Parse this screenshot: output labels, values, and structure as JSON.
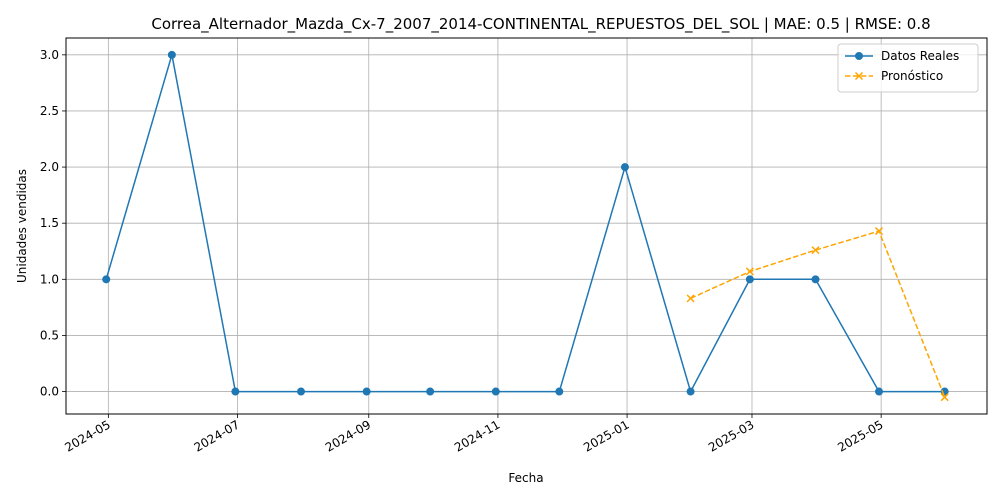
{
  "chart_data": {
    "type": "line",
    "title": "Correa_Alternador_Mazda_Cx-7_2007_2014-CONTINENTAL_REPUESTOS_DEL_SOL | MAE: 0.5 | RMSE: 0.8",
    "xlabel": "Fecha",
    "ylabel": "Unidades vendidas",
    "xlim": [
      "2024-04-11",
      "2025-06-20"
    ],
    "ylim": [
      -0.2,
      3.15
    ],
    "x_ticks": [
      "2024-05",
      "2024-07",
      "2024-09",
      "2024-11",
      "2025-01",
      "2025-03",
      "2025-05"
    ],
    "y_ticks": [
      0.0,
      0.5,
      1.0,
      1.5,
      2.0,
      2.5,
      3.0
    ],
    "y_tick_labels": [
      "0.0",
      "0.5",
      "1.0",
      "1.5",
      "2.0",
      "2.5",
      "3.0"
    ],
    "grid": true,
    "legend_position": "top-right",
    "series": [
      {
        "name": "Datos Reales",
        "color": "#1f77b4",
        "style": "solid",
        "marker": "circle",
        "x": [
          "2024-04-30",
          "2024-05-31",
          "2024-06-30",
          "2024-07-31",
          "2024-08-31",
          "2024-09-30",
          "2024-10-31",
          "2024-11-30",
          "2024-12-31",
          "2025-01-31",
          "2025-02-28",
          "2025-03-31",
          "2025-04-30",
          "2025-05-31"
        ],
        "values": [
          1,
          3,
          0,
          0,
          0,
          0,
          0,
          0,
          2,
          0,
          1,
          1,
          0,
          0
        ]
      },
      {
        "name": "Pronóstico",
        "color": "#ffa500",
        "style": "dashed",
        "marker": "x",
        "x": [
          "2025-01-31",
          "2025-02-28",
          "2025-03-31",
          "2025-04-30",
          "2025-05-31"
        ],
        "values": [
          0.83,
          1.07,
          1.26,
          1.43,
          -0.05
        ]
      }
    ]
  }
}
